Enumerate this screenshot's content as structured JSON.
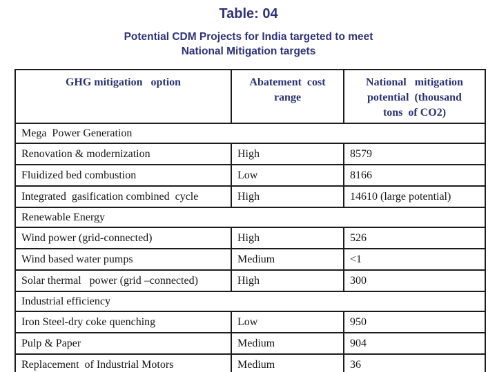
{
  "slide": {
    "title": "Table: 04",
    "subtitle_line1": "Potential CDM Projects for India targeted to meet",
    "subtitle_line2": "National Mitigation targets",
    "colors": {
      "heading_text": "#2e3277",
      "table_header_text": "#2b3173",
      "body_text": "#141414",
      "table_border": "#1c1c1c",
      "background": "#ffffff"
    }
  },
  "table": {
    "headers": [
      "GHG mitigation   option",
      "Abatement  cost\nrange",
      "National   mitigation\npotential  (thousand\ntons  of CO2)"
    ],
    "sections": [
      {
        "label": "Mega  Power Generation",
        "rows": [
          [
            "Renovation & modernization",
            "High",
            "8579"
          ],
          [
            "Fluidized bed combustion",
            "Low",
            "8166"
          ],
          [
            "Integrated  gasification combined  cycle",
            "High",
            "14610 (large potential)"
          ]
        ]
      },
      {
        "label": "Renewable Energy",
        "rows": [
          [
            "Wind power (grid-connected)",
            "High",
            "526"
          ],
          [
            "Wind based water pumps",
            "Medium",
            "<1"
          ],
          [
            "Solar thermal   power (grid –connected)",
            "High",
            "300"
          ]
        ]
      },
      {
        "label": "Industrial efficiency",
        "rows": [
          [
            "Iron Steel-dry coke quenching",
            "Low",
            "950"
          ],
          [
            "Pulp & Paper",
            "Medium",
            "904"
          ],
          [
            "Replacement  of Industrial Motors",
            "Medium",
            "36"
          ]
        ]
      }
    ]
  }
}
